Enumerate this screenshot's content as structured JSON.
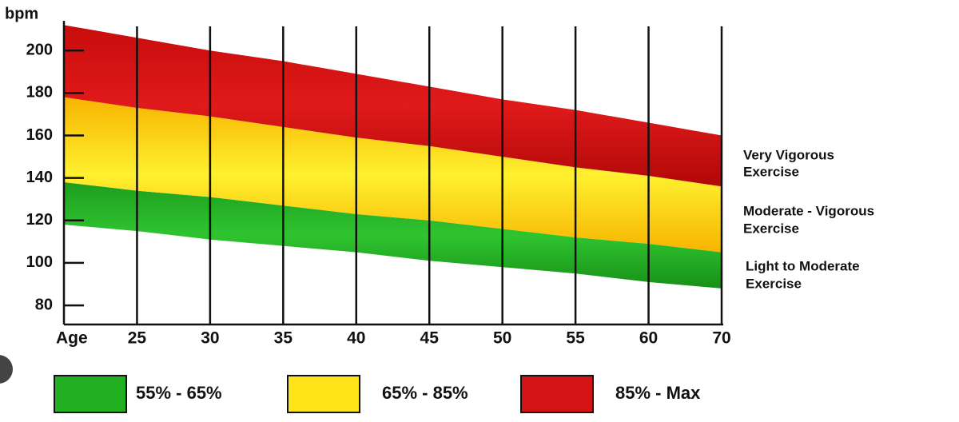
{
  "chart_data": {
    "type": "area_range",
    "y_label": "bpm",
    "categories": [
      "Age",
      "25",
      "30",
      "35",
      "40",
      "45",
      "50",
      "55",
      "60",
      "70"
    ],
    "ylim": [
      71,
      214
    ],
    "yticks": [
      80,
      100,
      120,
      140,
      160,
      180,
      200
    ],
    "series": [
      {
        "name": "55% - 65%",
        "color": "#22b022",
        "lower": [
          118,
          115,
          111,
          108,
          105,
          101,
          98,
          95,
          91,
          88
        ],
        "upper": [
          138,
          134,
          131,
          127,
          123,
          120,
          116,
          112,
          109,
          105
        ]
      },
      {
        "name": "65% - 85%",
        "color": "#ffe41a",
        "lower": [
          138,
          134,
          131,
          127,
          123,
          120,
          116,
          112,
          109,
          105
        ],
        "upper": [
          178,
          173,
          169,
          164,
          159,
          155,
          150,
          145,
          141,
          136
        ]
      },
      {
        "name": "85% - Max",
        "color": "#d41414",
        "lower": [
          178,
          173,
          169,
          164,
          159,
          155,
          150,
          145,
          141,
          136
        ],
        "upper": [
          212,
          206,
          200,
          195,
          189,
          183,
          177,
          172,
          166,
          160
        ]
      }
    ],
    "annotations": [
      {
        "lines": [
          "Very Vigorous",
          "Exercise"
        ]
      },
      {
        "lines": [
          "Moderate - Vigorous",
          "Exercise"
        ]
      },
      {
        "lines": [
          "Light to Moderate",
          "Exercise"
        ]
      }
    ]
  }
}
